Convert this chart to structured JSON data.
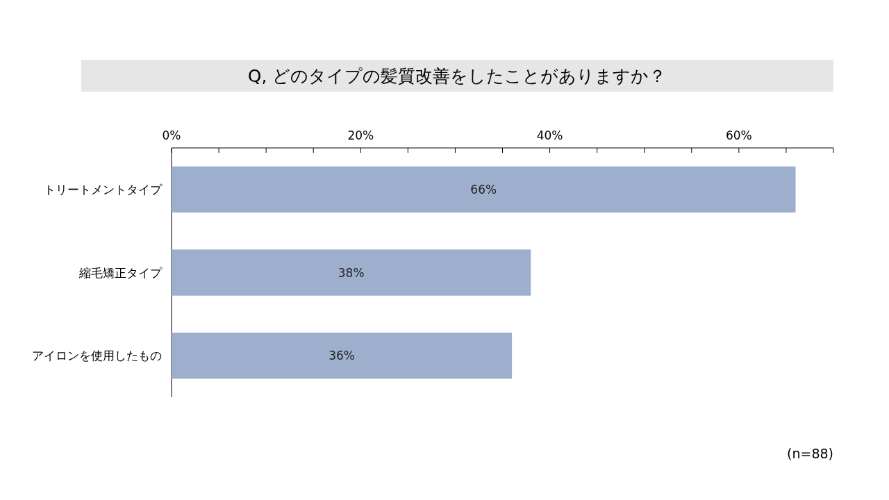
{
  "chart_data": {
    "type": "bar",
    "orientation": "horizontal",
    "title": "Q, どのタイプの髪質改善をしたことがありますか？",
    "categories": [
      "トリートメントタイプ",
      "縮毛矯正タイプ",
      "アイロンを使用したもの"
    ],
    "values": [
      66,
      38,
      36
    ],
    "value_labels": [
      "66%",
      "38%",
      "36%"
    ],
    "color": "#9dafcd",
    "xlim": [
      0,
      70
    ],
    "xticks": [
      {
        "value": 0,
        "label": "0%"
      },
      {
        "value": 5,
        "label": null
      },
      {
        "value": 10,
        "label": null
      },
      {
        "value": 15,
        "label": null
      },
      {
        "value": 20,
        "label": "20%"
      },
      {
        "value": 25,
        "label": null
      },
      {
        "value": 30,
        "label": null
      },
      {
        "value": 35,
        "label": null
      },
      {
        "value": 40,
        "label": "40%"
      },
      {
        "value": 45,
        "label": null
      },
      {
        "value": 50,
        "label": null
      },
      {
        "value": 55,
        "label": null
      },
      {
        "value": 60,
        "label": "60%"
      },
      {
        "value": 65,
        "label": null
      },
      {
        "value": 70,
        "label": null
      }
    ],
    "grid": false,
    "annotations": [
      "(n=88)"
    ]
  }
}
